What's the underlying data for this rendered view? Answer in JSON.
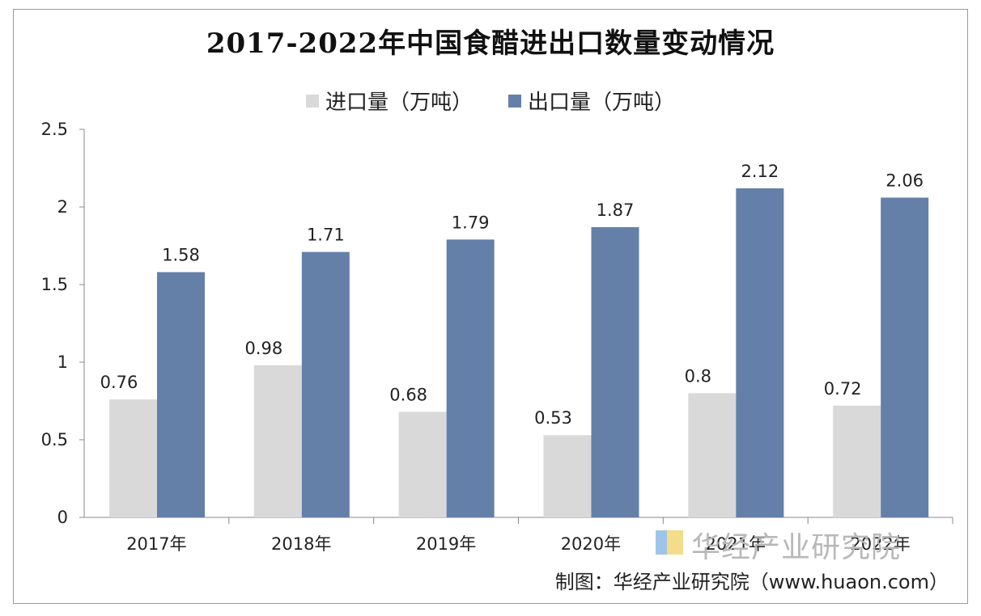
{
  "colors": {
    "import": "#d9d9d9",
    "export": "#6480a8",
    "axis": "#888888"
  },
  "chart_data": {
    "type": "bar",
    "title": "2017-2022年中国食醋进出口数量变动情况",
    "categories": [
      "2017年",
      "2018年",
      "2019年",
      "2020年",
      "2021年",
      "2022年"
    ],
    "series": [
      {
        "name": "进口量（万吨）",
        "values": [
          0.76,
          0.98,
          0.68,
          0.53,
          0.8,
          0.72
        ]
      },
      {
        "name": "出口量（万吨）",
        "values": [
          1.58,
          1.71,
          1.79,
          1.87,
          2.12,
          2.06
        ]
      }
    ],
    "data_labels": [
      [
        "0.76",
        "0.98",
        "0.68",
        "0.53",
        "0.8",
        "0.72"
      ],
      [
        "1.58",
        "1.71",
        "1.79",
        "1.87",
        "2.12",
        "2.06"
      ]
    ],
    "yticks": [
      "0",
      "0.5",
      "1",
      "1.5",
      "2",
      "2.5"
    ],
    "ylim": [
      0,
      2.5
    ],
    "grid": false,
    "legend": "top-center"
  },
  "watermark": "华经产业研究院",
  "source": "制图：华经产业研究院（www.huaon.com）"
}
